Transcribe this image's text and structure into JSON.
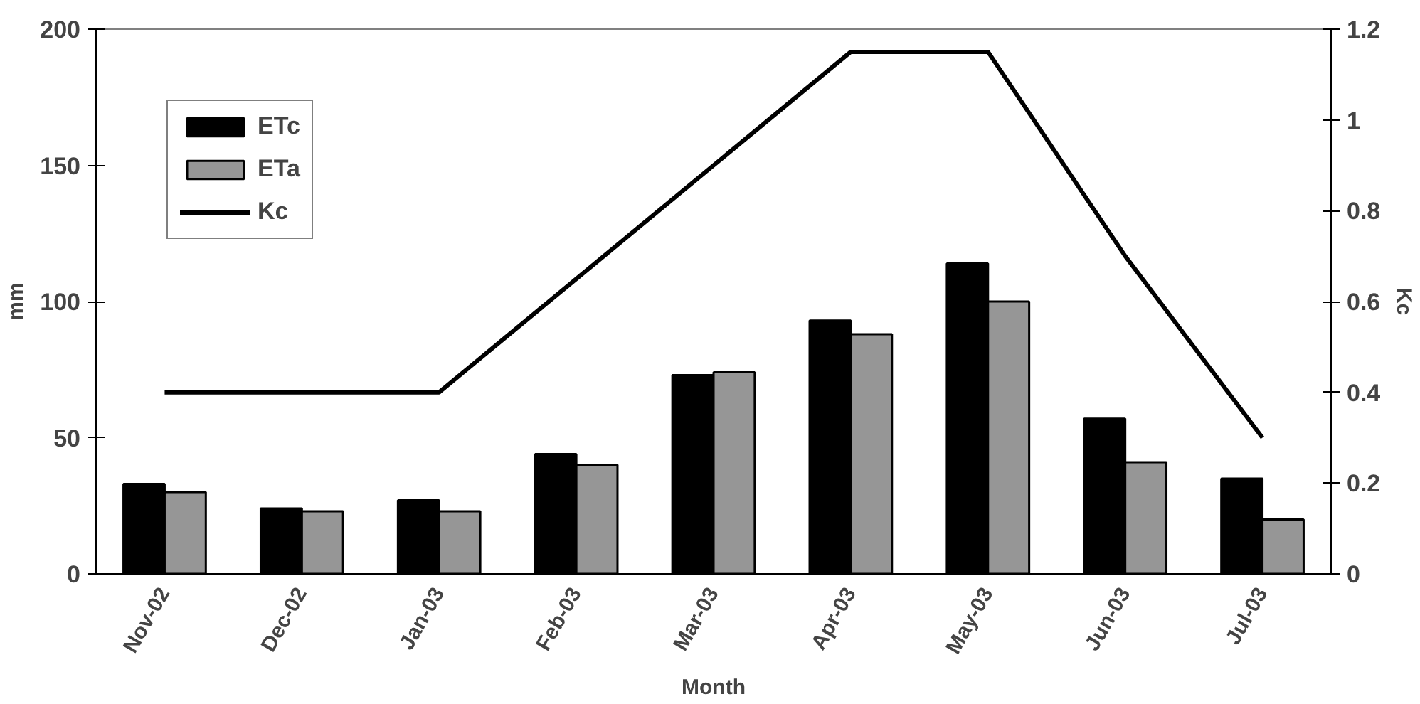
{
  "chart_data": {
    "type": "bar",
    "xlabel": "Month",
    "ylabel": "mm",
    "y2label": "Kc",
    "categories": [
      "Nov-02",
      "Dec-02",
      "Jan-03",
      "Feb-03",
      "Mar-03",
      "Apr-03",
      "May-03",
      "Jun-03",
      "Jul-03"
    ],
    "series": [
      {
        "name": "ETc",
        "color": "#000000",
        "values": [
          33,
          24,
          27,
          44,
          73,
          93,
          114,
          57,
          35
        ]
      },
      {
        "name": "ETa",
        "color": "#969696",
        "values": [
          30,
          23,
          23,
          40,
          74,
          88,
          100,
          41,
          20
        ]
      },
      {
        "name": "Kc",
        "type": "line",
        "axis": "y2",
        "color": "#000000",
        "values": [
          0.4,
          0.4,
          0.4,
          0.65,
          0.9,
          1.15,
          1.15,
          0.7,
          0.3
        ]
      }
    ],
    "ylim": [
      0,
      200
    ],
    "yticks": [
      0,
      50,
      100,
      150,
      200
    ],
    "y2lim": [
      0,
      1.2
    ],
    "y2ticks": [
      0,
      0.2,
      0.4,
      0.6,
      0.8,
      1,
      1.2
    ],
    "grid": false,
    "legend": "top left",
    "marker": "none",
    "line_style": "solid"
  }
}
